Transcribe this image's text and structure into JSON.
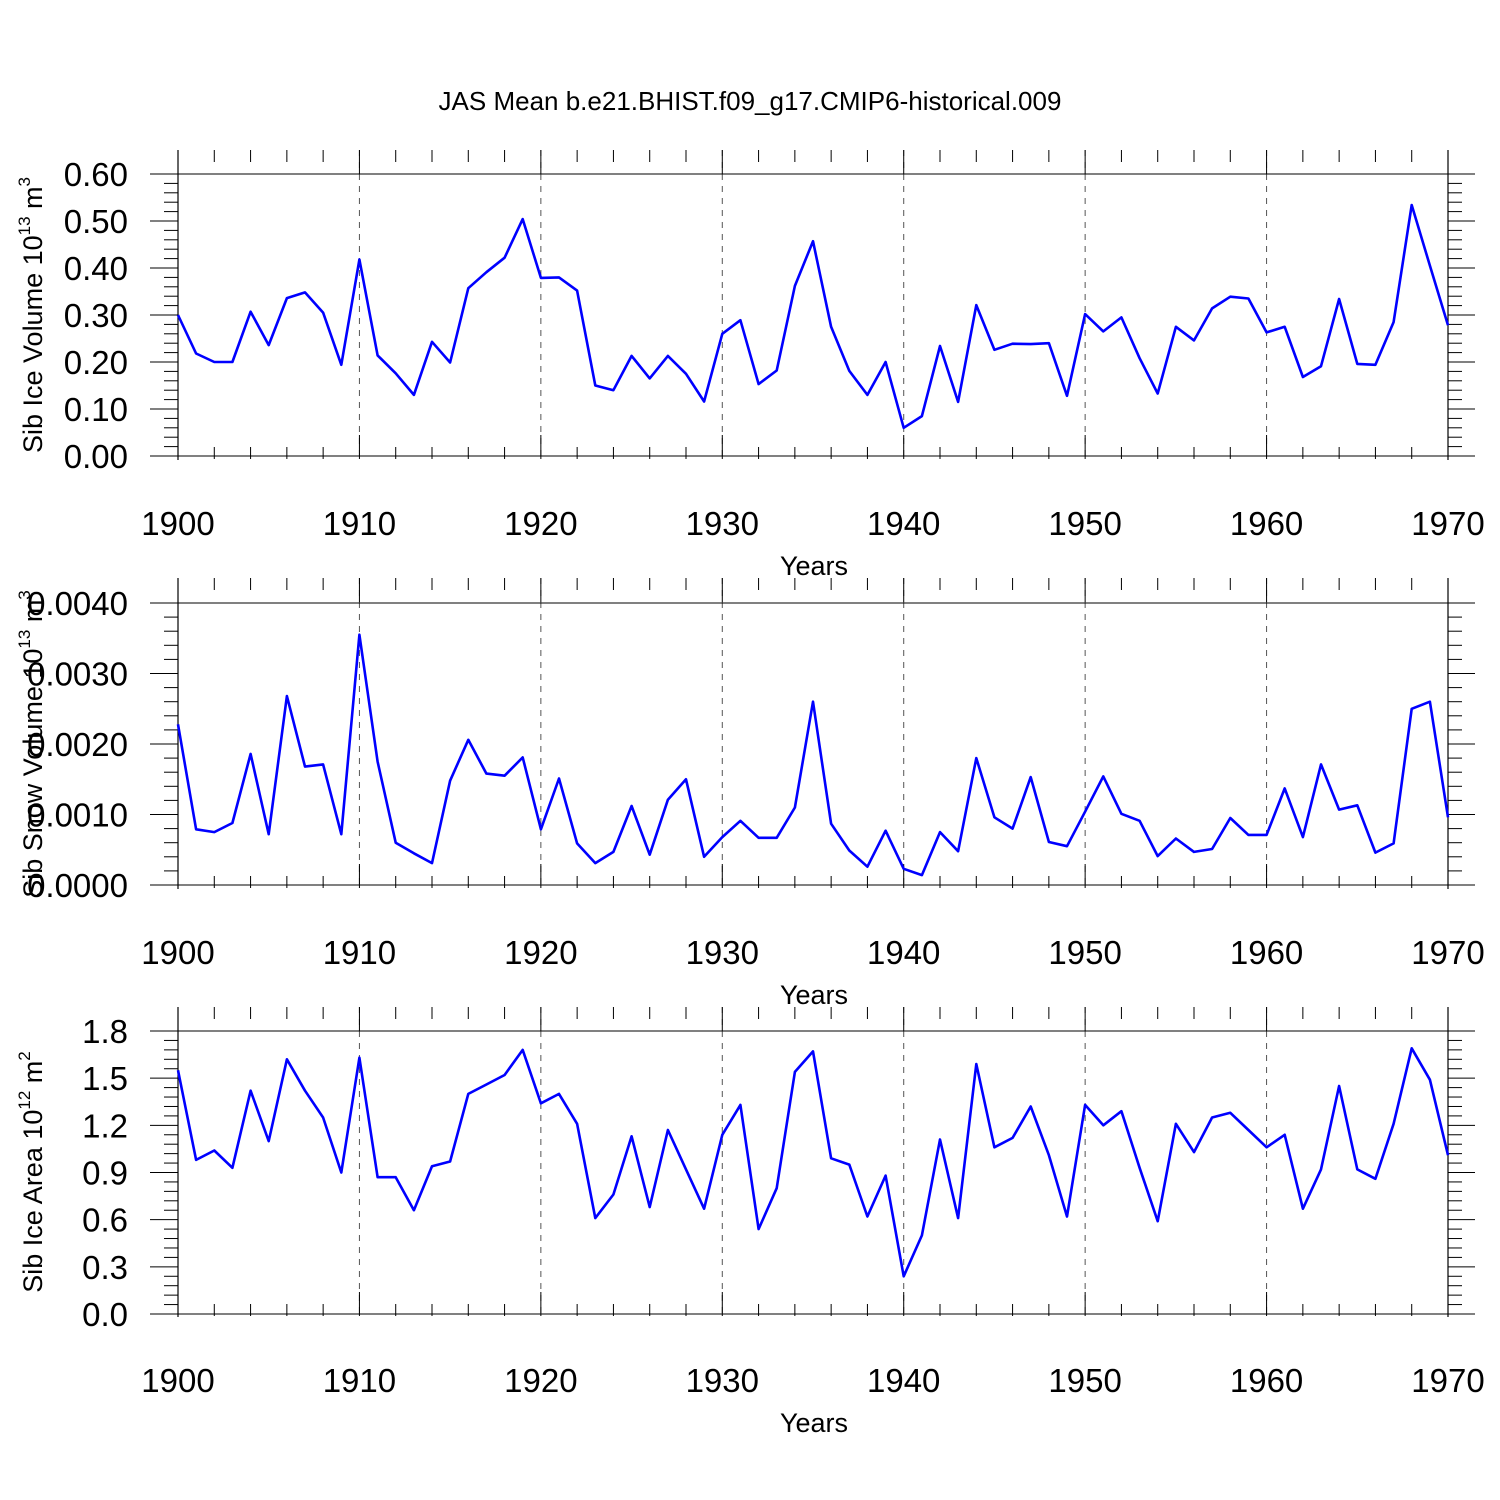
{
  "chart_data": {
    "title": "JAS Mean b.e21.BHIST.f09_g17.CMIP6-historical.009",
    "panels": [
      {
        "type": "line",
        "ylabel": "Sib Ice Volume 10",
        "ylabel_exp": "13",
        "ylabel_unit": " m",
        "ylabel_unit_exp": "3",
        "xlabel": "Years",
        "xlim": [
          1900,
          1970
        ],
        "ylim": [
          0,
          0.6
        ],
        "yticks": [
          "0.00",
          "0.10",
          "0.20",
          "0.30",
          "0.40",
          "0.50",
          "0.60"
        ],
        "ytick_values": [
          0,
          0.1,
          0.2,
          0.3,
          0.4,
          0.5,
          0.6
        ],
        "series": [
          {
            "name": "Sib Ice Volume",
            "color": "#0000ff",
            "values": [
              0.3,
              0.218,
              0.2,
              0.2,
              0.307,
              0.236,
              0.336,
              0.348,
              0.305,
              0.194,
              0.418,
              0.214,
              0.176,
              0.13,
              0.243,
              0.199,
              0.357,
              0.391,
              0.422,
              0.504,
              0.379,
              0.38,
              0.352,
              0.15,
              0.14,
              0.213,
              0.165,
              0.213,
              0.175,
              0.116,
              0.26,
              0.289,
              0.153,
              0.182,
              0.362,
              0.457,
              0.275,
              0.181,
              0.13,
              0.2,
              0.06,
              0.085,
              0.234,
              0.115,
              0.321,
              0.226,
              0.239,
              0.238,
              0.24,
              0.128,
              0.302,
              0.265,
              0.295,
              0.208,
              0.133,
              0.275,
              0.246,
              0.314,
              0.339,
              0.335,
              0.263,
              0.275,
              0.168,
              0.191,
              0.334,
              0.196,
              0.194,
              0.285,
              0.534,
              0.405,
              0.278
            ]
          }
        ]
      },
      {
        "type": "line",
        "ylabel": "Sib Snow Volume 10",
        "ylabel_exp": "13",
        "ylabel_unit": " m",
        "ylabel_unit_exp": "3",
        "xlabel": "Years",
        "xlim": [
          1900,
          1970
        ],
        "ylim": [
          0,
          0.004
        ],
        "yticks": [
          "0.0000",
          "0.0010",
          "0.0020",
          "0.0030",
          "0.0040"
        ],
        "ytick_values": [
          0,
          0.001,
          0.002,
          0.003,
          0.004
        ],
        "series": [
          {
            "name": "Sib Snow Volume",
            "color": "#0000ff",
            "values": [
              0.00228,
              0.00079,
              0.00075,
              0.00088,
              0.00186,
              0.00072,
              0.00268,
              0.00168,
              0.00171,
              0.00072,
              0.00355,
              0.00175,
              0.0006,
              0.00045,
              0.00031,
              0.00148,
              0.00206,
              0.00158,
              0.00155,
              0.00181,
              0.00079,
              0.00151,
              0.00059,
              0.00031,
              0.00047,
              0.00112,
              0.00043,
              0.00121,
              0.0015,
              0.0004,
              0.00068,
              0.00091,
              0.00067,
              0.00067,
              0.0011,
              0.0026,
              0.00087,
              0.00049,
              0.00026,
              0.00077,
              0.00023,
              0.00014,
              0.00075,
              0.00048,
              0.0018,
              0.00096,
              0.0008,
              0.00153,
              0.00061,
              0.00055,
              0.00104,
              0.00154,
              0.00101,
              0.00091,
              0.00041,
              0.00066,
              0.00047,
              0.00051,
              0.00095,
              0.00071,
              0.00071,
              0.00137,
              0.00068,
              0.00171,
              0.00107,
              0.00113,
              0.00046,
              0.00059,
              0.0025,
              0.0026,
              0.00096
            ]
          }
        ]
      },
      {
        "type": "line",
        "ylabel": "Sib Ice Area 10",
        "ylabel_exp": "12",
        "ylabel_unit": " m",
        "ylabel_unit_exp": "2",
        "xlabel": "Years",
        "xlim": [
          1900,
          1970
        ],
        "ylim": [
          0,
          1.8
        ],
        "yticks": [
          "0.0",
          "0.3",
          "0.6",
          "0.9",
          "1.2",
          "1.5",
          "1.8"
        ],
        "ytick_values": [
          0,
          0.3,
          0.6,
          0.9,
          1.2,
          1.5,
          1.8
        ],
        "series": [
          {
            "name": "Sib Ice Area",
            "color": "#0000ff",
            "values": [
              1.55,
              0.98,
              1.04,
              0.93,
              1.42,
              1.1,
              1.62,
              1.42,
              1.25,
              0.9,
              1.63,
              0.87,
              0.87,
              0.66,
              0.94,
              0.97,
              1.4,
              1.46,
              1.52,
              1.68,
              1.34,
              1.4,
              1.21,
              0.61,
              0.76,
              1.13,
              0.68,
              1.17,
              0.92,
              0.67,
              1.14,
              1.33,
              0.54,
              0.8,
              1.54,
              1.67,
              0.99,
              0.95,
              0.62,
              0.88,
              0.24,
              0.5,
              1.11,
              0.61,
              1.59,
              1.06,
              1.12,
              1.32,
              1.01,
              0.62,
              1.33,
              1.2,
              1.29,
              0.93,
              0.59,
              1.21,
              1.03,
              1.25,
              1.28,
              1.17,
              1.06,
              1.14,
              0.67,
              0.92,
              1.45,
              0.92,
              0.86,
              1.21,
              1.69,
              1.49,
              1.01
            ]
          }
        ]
      }
    ],
    "xticks": [
      "1900",
      "1910",
      "1920",
      "1930",
      "1940",
      "1950",
      "1960",
      "1970"
    ],
    "xtick_values": [
      1900,
      1910,
      1920,
      1930,
      1940,
      1950,
      1960,
      1970
    ],
    "grid": "dashed vertical lines at x tick positions"
  }
}
